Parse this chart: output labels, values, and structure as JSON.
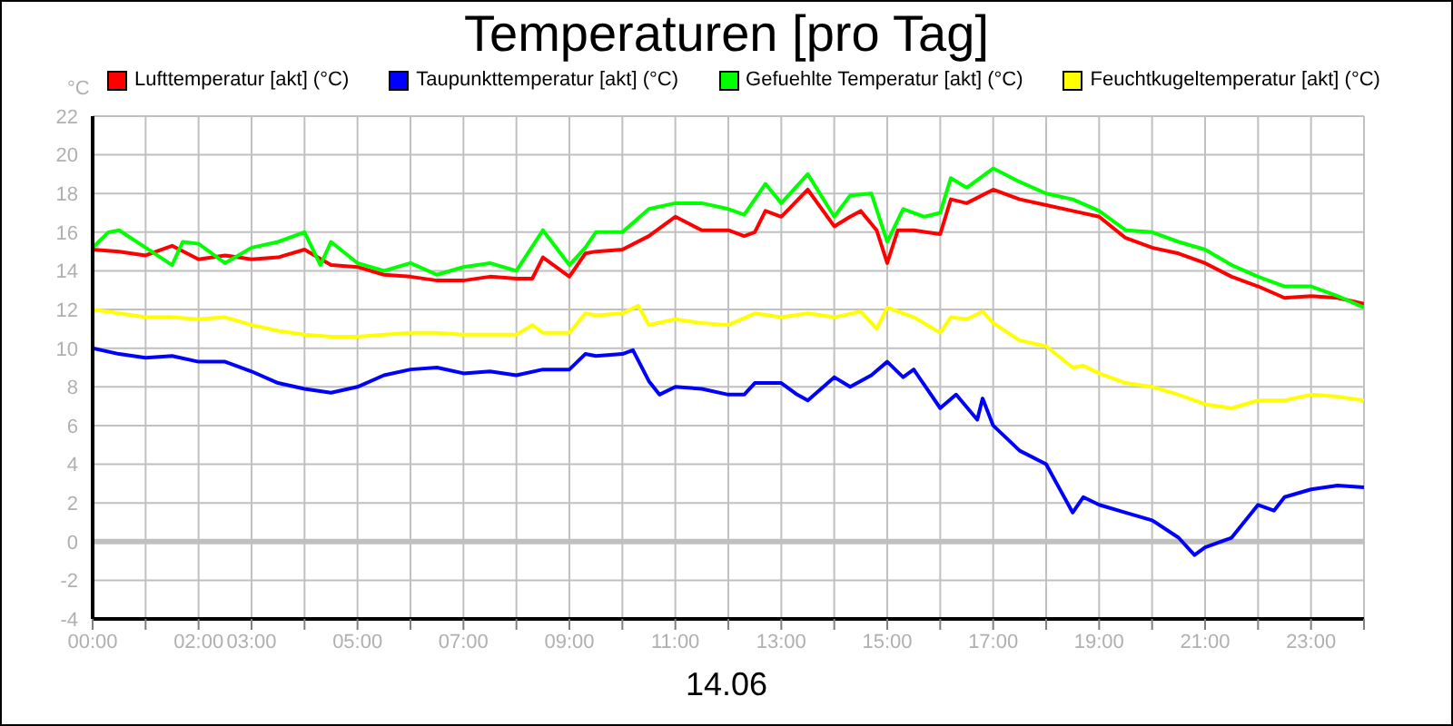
{
  "chart_data": {
    "type": "line",
    "title": "Temperaturen [pro Tag]",
    "ylabel": "°C",
    "xlabel": "14.06",
    "xlim": [
      0,
      24
    ],
    "xticks": [
      {
        "value": 0,
        "label": "00:00"
      },
      {
        "value": 1,
        "label": null
      },
      {
        "value": 2,
        "label": "02:00"
      },
      {
        "value": 3,
        "label": "03:00"
      },
      {
        "value": 4,
        "label": null
      },
      {
        "value": 5,
        "label": "05:00"
      },
      {
        "value": 6,
        "label": null
      },
      {
        "value": 7,
        "label": "07:00"
      },
      {
        "value": 8,
        "label": null
      },
      {
        "value": 9,
        "label": "09:00"
      },
      {
        "value": 10,
        "label": null
      },
      {
        "value": 11,
        "label": "11:00"
      },
      {
        "value": 12,
        "label": null
      },
      {
        "value": 13,
        "label": "13:00"
      },
      {
        "value": 14,
        "label": null
      },
      {
        "value": 15,
        "label": "15:00"
      },
      {
        "value": 16,
        "label": null
      },
      {
        "value": 17,
        "label": "17:00"
      },
      {
        "value": 18,
        "label": null
      },
      {
        "value": 19,
        "label": "19:00"
      },
      {
        "value": 20,
        "label": null
      },
      {
        "value": 21,
        "label": "21:00"
      },
      {
        "value": 22,
        "label": null
      },
      {
        "value": 23,
        "label": "23:00"
      },
      {
        "value": 24,
        "label": null
      }
    ],
    "ylim": [
      -4,
      22
    ],
    "yticks": [
      -4,
      -2,
      0,
      2,
      4,
      6,
      8,
      10,
      12,
      14,
      16,
      18,
      20,
      22
    ],
    "grid": true,
    "legend": "top",
    "marker": "none",
    "line_style": "solid",
    "ref_lines": [
      {
        "axis": "y",
        "value": 0,
        "color": "#c0c0c0"
      }
    ],
    "series": [
      {
        "name": "Lufttemperatur [akt] (°C)",
        "color": "#ff0000",
        "x": [
          0,
          0.5,
          1,
          1.5,
          2,
          2.5,
          3,
          3.5,
          4,
          4.5,
          5,
          5.5,
          6,
          6.5,
          7,
          7.5,
          8,
          8.3,
          8.5,
          9,
          9.3,
          9.5,
          10,
          10.5,
          11,
          11.5,
          12,
          12.3,
          12.5,
          12.7,
          13,
          13.5,
          14,
          14.3,
          14.5,
          14.8,
          15,
          15.2,
          15.5,
          16,
          16.2,
          16.5,
          17,
          17.5,
          18,
          18.5,
          19,
          19.5,
          20,
          20.5,
          21,
          21.5,
          22,
          22.5,
          23,
          23.5,
          24
        ],
        "values": [
          15.1,
          15,
          14.8,
          15.3,
          14.6,
          14.8,
          14.6,
          14.7,
          15.1,
          14.3,
          14.2,
          13.8,
          13.7,
          13.5,
          13.5,
          13.7,
          13.6,
          13.6,
          14.7,
          13.7,
          14.9,
          15,
          15.1,
          15.8,
          16.8,
          16.1,
          16.1,
          15.8,
          16,
          17.1,
          16.8,
          18.2,
          16.3,
          16.8,
          17.1,
          16.1,
          14.4,
          16.1,
          16.1,
          15.9,
          17.7,
          17.5,
          18.2,
          17.7,
          17.4,
          17.1,
          16.8,
          15.7,
          15.2,
          14.9,
          14.4,
          13.7,
          13.2,
          12.6,
          12.7,
          12.6,
          12.3
        ]
      },
      {
        "name": "Taupunkttemperatur [akt] (°C)",
        "color": "#0000ff",
        "x": [
          0,
          0.5,
          1,
          1.5,
          2,
          2.5,
          3,
          3.5,
          4,
          4.5,
          5,
          5.5,
          6,
          6.5,
          7,
          7.5,
          8,
          8.5,
          9,
          9.3,
          9.5,
          10,
          10.2,
          10.5,
          10.7,
          11,
          11.5,
          12,
          12.3,
          12.5,
          13,
          13.3,
          13.5,
          14,
          14.3,
          14.7,
          15,
          15.3,
          15.5,
          16,
          16.3,
          16.7,
          16.8,
          17,
          17.5,
          18,
          18.2,
          18.5,
          18.7,
          19,
          19.5,
          20,
          20.5,
          20.8,
          21,
          21.5,
          22,
          22.3,
          22.5,
          23,
          23.5,
          24
        ],
        "values": [
          10,
          9.7,
          9.5,
          9.6,
          9.3,
          9.3,
          8.8,
          8.2,
          7.9,
          7.7,
          8,
          8.6,
          8.9,
          9,
          8.7,
          8.8,
          8.6,
          8.9,
          8.9,
          9.7,
          9.6,
          9.7,
          9.9,
          8.3,
          7.6,
          8,
          7.9,
          7.6,
          7.6,
          8.2,
          8.2,
          7.6,
          7.3,
          8.5,
          8,
          8.6,
          9.3,
          8.5,
          8.9,
          6.9,
          7.6,
          6.3,
          7.4,
          6,
          4.7,
          4,
          3,
          1.5,
          2.3,
          1.9,
          1.5,
          1.1,
          0.2,
          -0.7,
          -0.3,
          0.2,
          1.9,
          1.6,
          2.3,
          2.7,
          2.9,
          2.8
        ]
      },
      {
        "name": "Gefuehlte Temperatur [akt] (°C)",
        "color": "#00ff00",
        "x": [
          0,
          0.3,
          0.5,
          1,
          1.5,
          1.7,
          2,
          2.5,
          3,
          3.5,
          4,
          4.3,
          4.5,
          5,
          5.5,
          6,
          6.5,
          7,
          7.5,
          8,
          8.5,
          9,
          9.3,
          9.5,
          10,
          10.5,
          11,
          11.5,
          12,
          12.3,
          12.7,
          13,
          13.5,
          14,
          14.3,
          14.7,
          15,
          15.3,
          15.7,
          16,
          16.2,
          16.5,
          17,
          17.5,
          18,
          18.5,
          19,
          19.5,
          20,
          20.5,
          21,
          21.5,
          22,
          22.5,
          23,
          23.5,
          24
        ],
        "values": [
          15.2,
          16,
          16.1,
          15.2,
          14.3,
          15.5,
          15.4,
          14.4,
          15.2,
          15.5,
          16,
          14.3,
          15.5,
          14.4,
          14,
          14.4,
          13.8,
          14.2,
          14.4,
          14,
          16.1,
          14.3,
          15.2,
          16,
          16,
          17.2,
          17.5,
          17.5,
          17.2,
          16.9,
          18.5,
          17.5,
          19,
          16.8,
          17.9,
          18,
          15.5,
          17.2,
          16.8,
          17,
          18.8,
          18.3,
          19.3,
          18.6,
          18,
          17.7,
          17.1,
          16.1,
          16,
          15.5,
          15.1,
          14.3,
          13.7,
          13.2,
          13.2,
          12.7,
          12.1
        ]
      },
      {
        "name": "Feuchtkugeltemperatur [akt] (°C)",
        "color": "#ffff00",
        "x": [
          0,
          0.5,
          1,
          1.5,
          2,
          2.5,
          3,
          3.5,
          4,
          4.5,
          5,
          5.5,
          6,
          6.5,
          7,
          7.5,
          8,
          8.3,
          8.5,
          9,
          9.3,
          9.5,
          10,
          10.3,
          10.5,
          11,
          11.5,
          12,
          12.5,
          13,
          13.5,
          14,
          14.5,
          14.8,
          15,
          15.5,
          16,
          16.2,
          16.5,
          16.8,
          17,
          17.5,
          18,
          18.5,
          18.7,
          19,
          19.5,
          20,
          20.5,
          21,
          21.5,
          22,
          22.5,
          23,
          23.5,
          24
        ],
        "values": [
          12,
          11.8,
          11.6,
          11.6,
          11.5,
          11.6,
          11.2,
          10.9,
          10.7,
          10.6,
          10.6,
          10.7,
          10.8,
          10.8,
          10.7,
          10.7,
          10.7,
          11.2,
          10.8,
          10.8,
          11.8,
          11.7,
          11.8,
          12.2,
          11.2,
          11.5,
          11.3,
          11.2,
          11.8,
          11.6,
          11.8,
          11.6,
          11.9,
          11,
          12.1,
          11.6,
          10.8,
          11.6,
          11.5,
          11.9,
          11.3,
          10.4,
          10.1,
          9,
          9.1,
          8.7,
          8.2,
          8,
          7.6,
          7.1,
          6.9,
          7.3,
          7.3,
          7.6,
          7.5,
          7.3
        ]
      }
    ]
  }
}
